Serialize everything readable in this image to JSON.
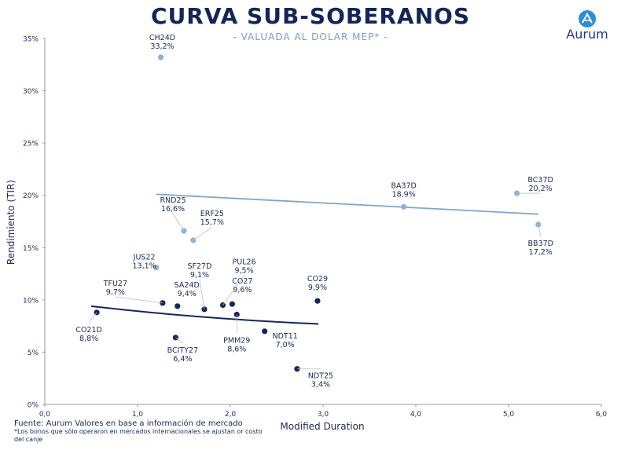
{
  "header": {
    "title": "CURVA SUB-SOBERANOS",
    "subtitle": "- VALUADA AL DOLAR MEP* -",
    "logo_text": "Aurum"
  },
  "footnotes": {
    "source": "Fuente: Aurum Valores en base a información de mercado",
    "note": "*Los bonos que sólo operaron en mercados internacionales se ajustan or costo del canje"
  },
  "colors": {
    "local_series": "#14275a",
    "international_series": "#8fb0d6",
    "axis_text": "#1b2a55"
  },
  "chart_data": {
    "type": "scatter",
    "xlabel": "Modified Duration",
    "ylabel": "Rendimiento (TIR)",
    "xlim": [
      0,
      6
    ],
    "ylim": [
      0,
      35
    ],
    "xticks": [
      "0,0",
      "1,0",
      "2,0",
      "3,0",
      "4,0",
      "5,0",
      "6,0"
    ],
    "yticks": [
      "0%",
      "5%",
      "10%",
      "15%",
      "20%",
      "25%",
      "30%",
      "35%"
    ],
    "series": [
      {
        "group": "local",
        "points": [
          {
            "label": "CO21D",
            "value": "8,8%",
            "x": 0.56,
            "y": 8.8
          },
          {
            "label": "TFU27",
            "value": "9,7%",
            "x": 1.27,
            "y": 9.7
          },
          {
            "label": "SA24D",
            "value": "9,4%",
            "x": 1.43,
            "y": 9.4
          },
          {
            "label": "BCITY27",
            "value": "6,4%",
            "x": 1.41,
            "y": 6.4
          },
          {
            "label": "SF27D",
            "value": "9,1%",
            "x": 1.72,
            "y": 9.1
          },
          {
            "label": "PUL26",
            "value": "9,5%",
            "x": 1.92,
            "y": 9.5
          },
          {
            "label": "CO27",
            "value": "9,6%",
            "x": 2.02,
            "y": 9.6
          },
          {
            "label": "PMM29",
            "value": "8,6%",
            "x": 2.07,
            "y": 8.6
          },
          {
            "label": "NDT11",
            "value": "7,0%",
            "x": 2.37,
            "y": 7.0
          },
          {
            "label": "CO29",
            "value": "9,9%",
            "x": 2.94,
            "y": 9.9
          },
          {
            "label": "NDT25",
            "value": "3,4%",
            "x": 2.72,
            "y": 3.4
          }
        ],
        "trend": [
          [
            0.5,
            9.4
          ],
          [
            2.95,
            7.7
          ]
        ]
      },
      {
        "group": "international",
        "points": [
          {
            "label": "CH24D",
            "value": "33,2%",
            "x": 1.25,
            "y": 33.2
          },
          {
            "label": "JUS22",
            "value": "13,1%",
            "x": 1.2,
            "y": 13.1
          },
          {
            "label": "RND25",
            "value": "16,6%",
            "x": 1.5,
            "y": 16.6
          },
          {
            "label": "ERF25",
            "value": "15,7%",
            "x": 1.6,
            "y": 15.7
          },
          {
            "label": "BA37D",
            "value": "18,9%",
            "x": 3.87,
            "y": 18.9
          },
          {
            "label": "BC37D",
            "value": "20,2%",
            "x": 5.09,
            "y": 20.2
          },
          {
            "label": "BB37D",
            "value": "17,2%",
            "x": 5.32,
            "y": 17.2
          }
        ],
        "trend": [
          [
            1.2,
            20.1
          ],
          [
            5.32,
            18.2
          ]
        ]
      }
    ]
  }
}
